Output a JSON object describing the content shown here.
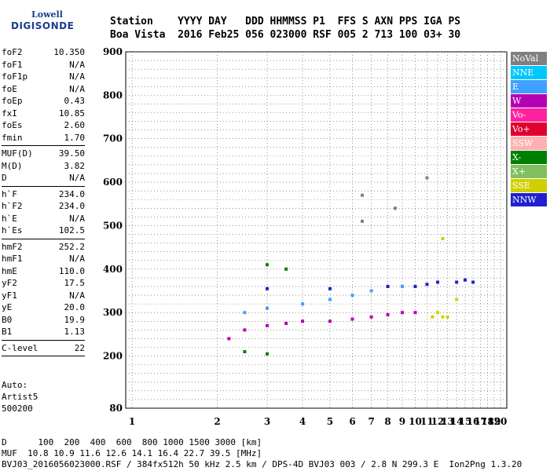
{
  "logo": {
    "line1": "Lowell",
    "line2": "DIGISONDE"
  },
  "header": {
    "labels": "Station    YYYY DAY   DDD HHMMSS P1  FFS S AXN PPS IGA PS",
    "values": "Boa Vista  2016 Feb25 056 023000 RSF 005 2 713 100 03+ 30"
  },
  "params": [
    {
      "name": "foF2",
      "value": "10.350"
    },
    {
      "name": "foF1",
      "value": "N/A"
    },
    {
      "name": "foF1p",
      "value": "N/A"
    },
    {
      "name": "foE",
      "value": "N/A"
    },
    {
      "name": "foEp",
      "value": "0.43"
    },
    {
      "name": "fxI",
      "value": "10.85"
    },
    {
      "name": "foEs",
      "value": "2.60"
    },
    {
      "name": "fmin",
      "value": "1.70"
    },
    {
      "sep": true
    },
    {
      "name": "MUF(D)",
      "value": "39.50"
    },
    {
      "name": "M(D)",
      "value": "3.82"
    },
    {
      "name": "D",
      "value": "N/A"
    },
    {
      "sep": true
    },
    {
      "name": "h`F",
      "value": "234.0"
    },
    {
      "name": "h`F2",
      "value": "234.0"
    },
    {
      "name": "h`E",
      "value": "N/A"
    },
    {
      "name": "h`Es",
      "value": "102.5"
    },
    {
      "sep": true
    },
    {
      "name": "hmF2",
      "value": "252.2"
    },
    {
      "name": "hmF1",
      "value": "N/A"
    },
    {
      "name": "hmE",
      "value": "110.0"
    },
    {
      "name": "yF2",
      "value": "17.5"
    },
    {
      "name": "yF1",
      "value": "N/A"
    },
    {
      "name": "yE",
      "value": "20.0"
    },
    {
      "name": "B0",
      "value": "19.9"
    },
    {
      "name": "B1",
      "value": "1.13"
    },
    {
      "sep": true
    },
    {
      "name": "C-level",
      "value": "22"
    },
    {
      "sep": true
    }
  ],
  "auto": {
    "line1": "Auto:",
    "line2": "Artist5",
    "line3": "500200"
  },
  "legend": [
    {
      "label": "NoVal",
      "color": "#808080"
    },
    {
      "label": "NNE",
      "color": "#00c8ff"
    },
    {
      "label": "E",
      "color": "#40a0ff"
    },
    {
      "label": "W",
      "color": "#b400b4"
    },
    {
      "label": "Vo-",
      "color": "#ff20a0"
    },
    {
      "label": "Vo+",
      "color": "#e00030"
    },
    {
      "label": "SSW",
      "color": "#ffb0b0"
    },
    {
      "label": "X-",
      "color": "#008000"
    },
    {
      "label": "X+",
      "color": "#80c060"
    },
    {
      "label": "SSE",
      "color": "#d0d000"
    },
    {
      "label": "NNW",
      "color": "#2020d0"
    }
  ],
  "chart_data": {
    "type": "scatter",
    "xlim": [
      1,
      20
    ],
    "ylim": [
      80,
      900
    ],
    "x_ticks": [
      "1",
      "2",
      "3",
      "4",
      "5",
      "6",
      "7",
      "8",
      "9",
      "10",
      "11",
      "12",
      "13",
      "14",
      "15",
      "16",
      "17",
      "18",
      "19",
      "20"
    ],
    "y_ticks": [
      "80",
      "200",
      "300",
      "400",
      "500",
      "600",
      "700",
      "800",
      "900"
    ],
    "series": [
      {
        "name": "W",
        "points": [
          [
            2.2,
            240
          ],
          [
            2.5,
            260
          ],
          [
            3,
            270
          ],
          [
            3.5,
            275
          ],
          [
            4,
            280
          ],
          [
            5,
            280
          ],
          [
            6,
            285
          ],
          [
            7,
            290
          ],
          [
            8,
            295
          ],
          [
            9,
            300
          ],
          [
            10,
            300
          ]
        ]
      },
      {
        "name": "E",
        "points": [
          [
            2.5,
            300
          ],
          [
            3,
            310
          ],
          [
            4,
            320
          ],
          [
            5,
            330
          ],
          [
            6,
            340
          ],
          [
            7,
            350
          ],
          [
            8,
            360
          ],
          [
            9,
            360
          ],
          [
            10,
            360
          ]
        ]
      },
      {
        "name": "NNW",
        "points": [
          [
            3,
            355
          ],
          [
            5,
            355
          ],
          [
            8,
            360
          ],
          [
            10,
            360
          ],
          [
            11,
            365
          ],
          [
            12,
            370
          ],
          [
            14,
            370
          ],
          [
            15,
            375
          ],
          [
            16,
            370
          ]
        ]
      },
      {
        "name": "SSE",
        "points": [
          [
            11.5,
            290
          ],
          [
            12,
            300
          ],
          [
            12.5,
            290
          ],
          [
            13,
            290
          ],
          [
            12.5,
            470
          ],
          [
            14,
            330
          ]
        ]
      },
      {
        "name": "X-",
        "points": [
          [
            2.5,
            210
          ],
          [
            3,
            205
          ],
          [
            3,
            410
          ],
          [
            3.5,
            400
          ]
        ]
      },
      {
        "name": "NoVal",
        "points": [
          [
            6.5,
            570
          ],
          [
            6.5,
            510
          ],
          [
            8.5,
            540
          ],
          [
            11,
            610
          ]
        ]
      }
    ]
  },
  "footer": {
    "line1": "D      100  200  400  600  800 1000 1500 3000 [km]",
    "line2": "MUF  10.8 10.9 11.6 12.6 14.1 16.4 22.7 39.5 [MHz]",
    "line3": "BVJ03_2016056023000.RSF / 384fx512h 50 kHz 2.5 km / DPS-4D BVJ03 003 / 2.8 N 299.3 E  Ion2Png 1.3.20"
  }
}
